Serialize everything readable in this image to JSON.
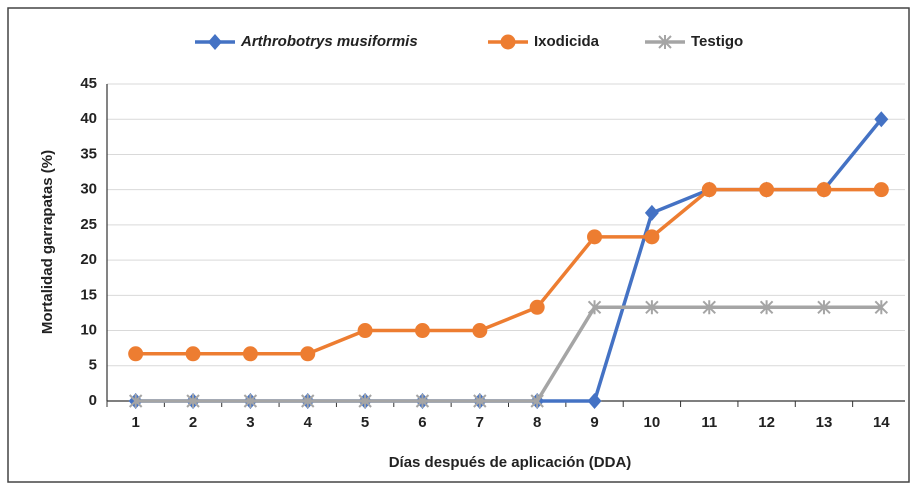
{
  "chart_data": {
    "type": "line",
    "xlabel": "Días después de aplicación (DDA)",
    "ylabel": "Mortalidad garrapatas (%)",
    "categories": [
      "1",
      "2",
      "3",
      "4",
      "5",
      "6",
      "7",
      "8",
      "9",
      "10",
      "11",
      "12",
      "13",
      "14"
    ],
    "series": [
      {
        "name": "Arthrobotrys musiformis",
        "color": "#4472c4",
        "marker": "diamond",
        "values": [
          0,
          0,
          0,
          0,
          0,
          0,
          0,
          0,
          0,
          26.7,
          30,
          30,
          30,
          40
        ]
      },
      {
        "name": "Ixodicida",
        "color": "#ed7d31",
        "marker": "circle",
        "values": [
          6.7,
          6.7,
          6.7,
          6.7,
          10,
          10,
          10,
          13.3,
          23.3,
          23.3,
          30,
          30,
          30,
          30
        ]
      },
      {
        "name": "Testigo",
        "color": "#a5a5a5",
        "marker": "asterisk",
        "values": [
          0,
          0,
          0,
          0,
          0,
          0,
          0,
          0,
          13.3,
          13.3,
          13.3,
          13.3,
          13.3,
          13.3
        ]
      }
    ],
    "ylim": [
      0,
      45
    ],
    "yticks": [
      0,
      5,
      10,
      15,
      20,
      25,
      30,
      35,
      40,
      45
    ],
    "grid": true,
    "legend": "top"
  }
}
